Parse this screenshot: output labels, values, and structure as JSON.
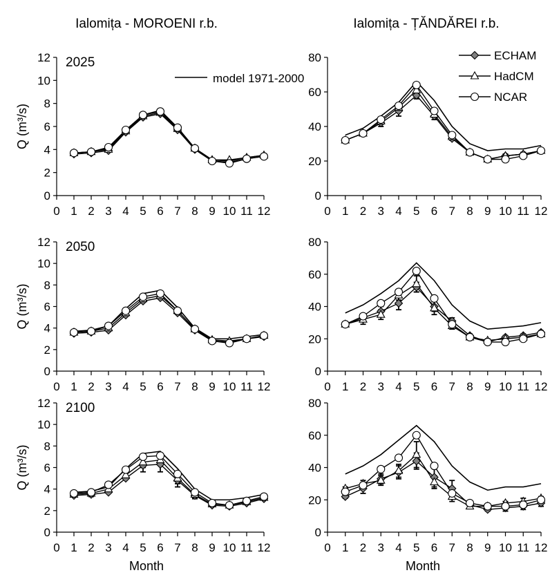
{
  "column_titles": [
    "Ialomița - MOROENI r.b.",
    "Ialomița - ȚĂNDĂREI r.b."
  ],
  "ylabel": "Q (m³/s)",
  "xlabel": "Month",
  "legend_model": "model 1971-2000",
  "legend_series": [
    "ECHAM",
    "HadCM",
    "NCAR"
  ],
  "chart_data": [
    {
      "type": "line",
      "row": 0,
      "col": 0,
      "panel_label": "2025",
      "x": [
        1,
        2,
        3,
        4,
        5,
        6,
        7,
        8,
        9,
        10,
        11,
        12
      ],
      "xlim": [
        0,
        12
      ],
      "ylim": [
        0,
        12
      ],
      "yticks": [
        0,
        2,
        4,
        6,
        8,
        10,
        12
      ],
      "series": [
        {
          "name": "model 1971-2000",
          "values": [
            3.7,
            3.8,
            4.1,
            5.6,
            7.0,
            7.4,
            5.9,
            4.1,
            3.1,
            3.0,
            3.3,
            3.5
          ]
        },
        {
          "name": "ECHAM",
          "values": [
            3.6,
            3.7,
            3.9,
            5.5,
            6.8,
            7.1,
            5.7,
            4.0,
            3.0,
            2.9,
            3.2,
            3.4
          ],
          "errors": [
            0,
            0,
            0,
            0,
            0,
            0,
            0,
            0,
            0,
            0,
            0,
            0
          ]
        },
        {
          "name": "HadCM",
          "values": [
            3.7,
            3.8,
            4.0,
            5.6,
            6.9,
            7.2,
            5.8,
            4.1,
            3.1,
            3.1,
            3.3,
            3.5
          ],
          "errors": [
            0,
            0,
            0,
            0,
            0,
            0,
            0,
            0,
            0,
            0,
            0,
            0
          ]
        },
        {
          "name": "NCAR",
          "values": [
            3.7,
            3.8,
            4.2,
            5.7,
            7.0,
            7.3,
            5.9,
            4.1,
            3.0,
            2.8,
            3.2,
            3.4
          ],
          "errors": [
            0,
            0,
            0,
            0,
            0,
            0,
            0,
            0,
            0,
            0,
            0,
            0
          ]
        }
      ]
    },
    {
      "type": "line",
      "row": 0,
      "col": 1,
      "panel_label": "",
      "x": [
        1,
        2,
        3,
        4,
        5,
        6,
        7,
        8,
        9,
        10,
        11,
        12
      ],
      "xlim": [
        0,
        12
      ],
      "ylim": [
        0,
        80
      ],
      "yticks": [
        0,
        20,
        40,
        60,
        80
      ],
      "series": [
        {
          "name": "model 1971-2000",
          "values": [
            35,
            39,
            46,
            54,
            66,
            55,
            40,
            30,
            26,
            27,
            27,
            29
          ]
        },
        {
          "name": "ECHAM",
          "values": [
            32,
            36,
            42,
            49,
            58,
            46,
            33,
            25,
            21,
            23,
            24,
            26
          ],
          "errors": [
            0,
            1,
            2,
            3,
            2,
            2,
            1,
            1,
            1,
            1,
            1,
            0
          ]
        },
        {
          "name": "HadCM",
          "values": [
            32,
            36,
            43,
            51,
            61,
            47,
            34,
            25,
            21,
            23,
            24,
            26
          ],
          "errors": [
            0,
            0,
            1,
            1,
            1,
            1,
            1,
            1,
            0,
            1,
            1,
            0
          ]
        },
        {
          "name": "NCAR",
          "values": [
            32,
            36,
            44,
            52,
            64,
            49,
            35,
            25,
            21,
            21,
            23,
            26
          ],
          "errors": [
            0,
            0,
            0,
            0,
            0,
            0,
            0,
            0,
            0,
            1,
            1,
            0
          ]
        }
      ]
    },
    {
      "type": "line",
      "row": 1,
      "col": 0,
      "panel_label": "2050",
      "x": [
        1,
        2,
        3,
        4,
        5,
        6,
        7,
        8,
        9,
        10,
        11,
        12
      ],
      "xlim": [
        0,
        12
      ],
      "ylim": [
        0,
        12
      ],
      "yticks": [
        0,
        2,
        4,
        6,
        8,
        10,
        12
      ],
      "series": [
        {
          "name": "model 1971-2000",
          "values": [
            3.7,
            3.8,
            4.2,
            5.8,
            7.2,
            7.5,
            5.9,
            4.0,
            3.0,
            3.0,
            3.2,
            3.4
          ]
        },
        {
          "name": "ECHAM",
          "values": [
            3.5,
            3.6,
            3.8,
            5.2,
            6.5,
            6.8,
            5.4,
            3.8,
            2.8,
            2.7,
            3.0,
            3.2
          ],
          "errors": [
            0,
            0,
            0,
            0,
            0,
            0,
            0,
            0,
            0,
            0,
            0,
            0
          ]
        },
        {
          "name": "HadCM",
          "values": [
            3.6,
            3.7,
            4.0,
            5.4,
            6.7,
            7.0,
            5.6,
            3.9,
            2.9,
            2.8,
            3.0,
            3.3
          ],
          "errors": [
            0,
            0,
            0,
            0,
            0,
            0,
            0,
            0,
            0,
            0,
            0,
            0
          ]
        },
        {
          "name": "NCAR",
          "values": [
            3.6,
            3.7,
            4.2,
            5.6,
            6.9,
            7.2,
            5.6,
            3.9,
            2.8,
            2.6,
            3.0,
            3.3
          ],
          "errors": [
            0,
            0,
            0,
            0,
            0,
            0,
            0,
            0,
            0,
            0,
            0,
            0
          ]
        }
      ]
    },
    {
      "type": "line",
      "row": 1,
      "col": 1,
      "panel_label": "",
      "x": [
        1,
        2,
        3,
        4,
        5,
        6,
        7,
        8,
        9,
        10,
        11,
        12
      ],
      "xlim": [
        0,
        12
      ],
      "ylim": [
        0,
        80
      ],
      "yticks": [
        0,
        20,
        40,
        60,
        80
      ],
      "series": [
        {
          "name": "model 1971-2000",
          "values": [
            36,
            41,
            48,
            56,
            67,
            56,
            41,
            31,
            26,
            27,
            28,
            30
          ]
        },
        {
          "name": "ECHAM",
          "values": [
            29,
            33,
            37,
            42,
            52,
            40,
            31,
            22,
            18,
            21,
            22,
            24
          ],
          "errors": [
            1,
            2,
            3,
            4,
            3,
            3,
            2,
            1,
            1,
            1,
            1,
            1
          ]
        },
        {
          "name": "HadCM",
          "values": [
            29,
            32,
            35,
            47,
            54,
            39,
            28,
            21,
            19,
            20,
            21,
            23
          ],
          "errors": [
            1,
            3,
            3,
            3,
            5,
            4,
            2,
            1,
            1,
            1,
            1,
            1
          ]
        },
        {
          "name": "NCAR",
          "values": [
            29,
            34,
            42,
            49,
            62,
            45,
            29,
            21,
            18,
            18,
            20,
            23
          ],
          "errors": [
            0,
            0,
            0,
            0,
            0,
            0,
            0,
            0,
            0,
            0,
            0,
            0
          ]
        }
      ]
    },
    {
      "type": "line",
      "row": 2,
      "col": 0,
      "panel_label": "2100",
      "x": [
        1,
        2,
        3,
        4,
        5,
        6,
        7,
        8,
        9,
        10,
        11,
        12
      ],
      "xlim": [
        0,
        12
      ],
      "ylim": [
        0,
        12
      ],
      "yticks": [
        0,
        2,
        4,
        6,
        8,
        10,
        12
      ],
      "series": [
        {
          "name": "model 1971-2000",
          "values": [
            3.7,
            3.8,
            4.2,
            5.9,
            7.3,
            7.5,
            5.9,
            4.0,
            3.0,
            3.0,
            3.2,
            3.5
          ]
        },
        {
          "name": "ECHAM",
          "values": [
            3.4,
            3.5,
            3.7,
            5.0,
            6.2,
            6.3,
            4.8,
            3.4,
            2.5,
            2.4,
            2.7,
            3.1
          ],
          "errors": [
            0,
            0,
            0,
            0,
            0.6,
            0.7,
            0.6,
            0.3,
            0,
            0,
            0,
            0
          ]
        },
        {
          "name": "HadCM",
          "values": [
            3.5,
            3.6,
            4.0,
            5.3,
            6.5,
            6.7,
            5.0,
            3.5,
            2.6,
            2.5,
            2.8,
            3.2
          ],
          "errors": [
            0,
            0.3,
            0.3,
            0.3,
            0.5,
            0.5,
            0.5,
            0.3,
            0.2,
            0.2,
            0.2,
            0.2
          ]
        },
        {
          "name": "NCAR",
          "values": [
            3.6,
            3.7,
            4.4,
            5.8,
            7.0,
            7.1,
            5.4,
            3.7,
            2.7,
            2.5,
            2.9,
            3.3
          ],
          "errors": [
            0,
            0,
            0,
            0,
            0,
            0,
            0,
            0,
            0,
            0,
            0,
            0
          ]
        }
      ]
    },
    {
      "type": "line",
      "row": 2,
      "col": 1,
      "panel_label": "",
      "x": [
        1,
        2,
        3,
        4,
        5,
        6,
        7,
        8,
        9,
        10,
        11,
        12
      ],
      "xlim": [
        0,
        12
      ],
      "ylim": [
        0,
        80
      ],
      "yticks": [
        0,
        20,
        40,
        60,
        80
      ],
      "series": [
        {
          "name": "model 1971-2000",
          "values": [
            36,
            41,
            48,
            57,
            66,
            56,
            41,
            31,
            26,
            28,
            28,
            30
          ]
        },
        {
          "name": "ECHAM",
          "values": [
            22,
            27,
            33,
            37,
            44,
            34,
            27,
            17,
            14,
            15,
            16,
            18
          ],
          "errors": [
            1,
            3,
            3,
            4,
            5,
            6,
            5,
            2,
            1,
            2,
            2,
            2
          ]
        },
        {
          "name": "HadCM",
          "values": [
            27,
            30,
            32,
            38,
            48,
            31,
            22,
            16,
            16,
            18,
            19,
            21
          ],
          "errors": [
            1,
            2,
            3,
            4,
            8,
            4,
            3,
            1,
            1,
            1,
            2,
            1
          ]
        },
        {
          "name": "NCAR",
          "values": [
            25,
            29,
            39,
            46,
            60,
            41,
            24,
            18,
            16,
            16,
            17,
            20
          ],
          "errors": [
            0,
            0,
            0,
            0,
            0,
            0,
            0,
            0,
            0,
            0,
            0,
            0
          ]
        }
      ]
    }
  ]
}
